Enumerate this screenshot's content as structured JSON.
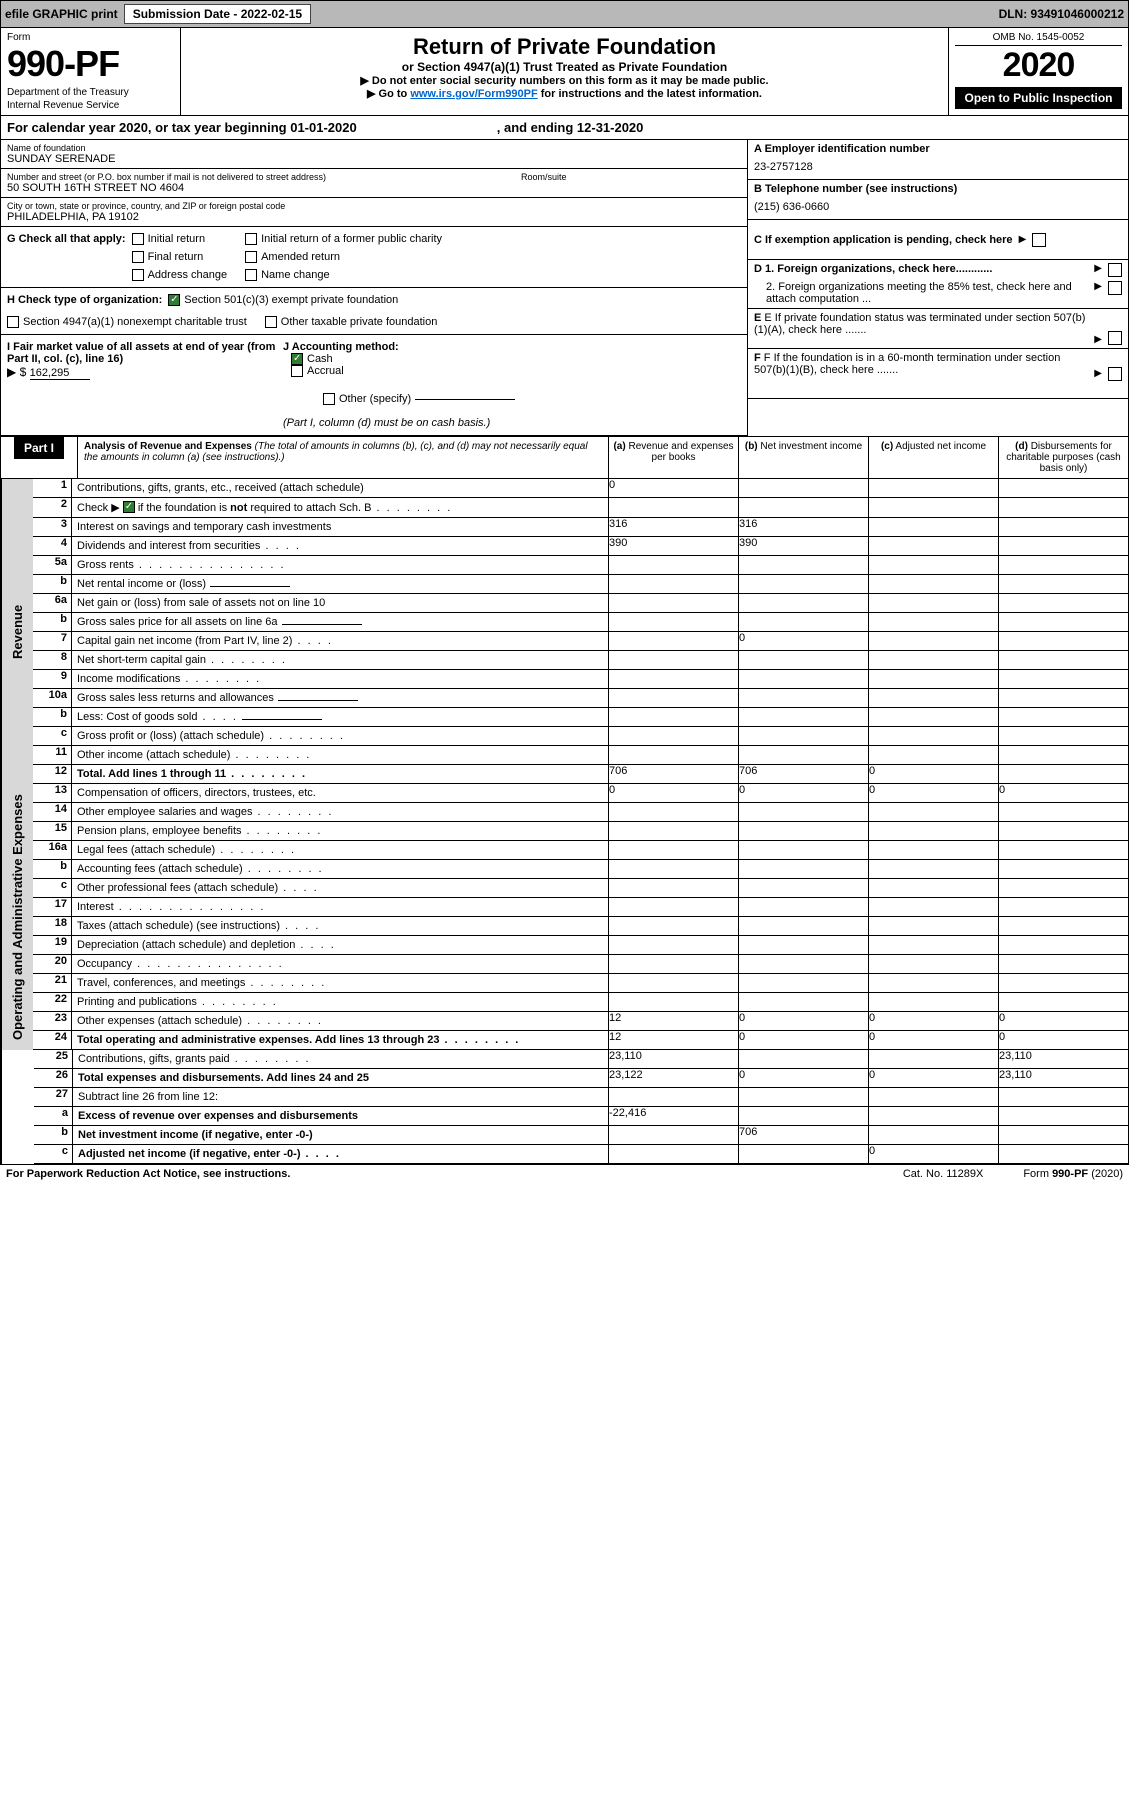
{
  "topbar": {
    "efile": "efile GRAPHIC print",
    "submission_lbl": "Submission Date - 2022-02-15",
    "dln": "DLN: 93491046000212"
  },
  "header": {
    "form_lbl": "Form",
    "form_no": "990-PF",
    "dept": "Department of the Treasury",
    "irs": "Internal Revenue Service",
    "title": "Return of Private Foundation",
    "subtitle": "or Section 4947(a)(1) Trust Treated as Private Foundation",
    "note1": "▶ Do not enter social security numbers on this form as it may be made public.",
    "note2_pre": "▶ Go to ",
    "note2_link": "www.irs.gov/Form990PF",
    "note2_post": " for instructions and the latest information.",
    "omb": "OMB No. 1545-0052",
    "year": "2020",
    "otp": "Open to Public Inspection"
  },
  "cal": {
    "text": "For calendar year 2020, or tax year beginning 01-01-2020",
    "ending": ", and ending 12-31-2020"
  },
  "id": {
    "name_lbl": "Name of foundation",
    "name": "SUNDAY SERENADE",
    "addr_lbl": "Number and street (or P.O. box number if mail is not delivered to street address)",
    "room_lbl": "Room/suite",
    "addr": "50 SOUTH 16TH STREET NO 4604",
    "city_lbl": "City or town, state or province, country, and ZIP or foreign postal code",
    "city": "PHILADELPHIA, PA  19102",
    "ein_lbl": "A Employer identification number",
    "ein": "23-2757128",
    "tel_lbl": "B Telephone number (see instructions)",
    "tel": "(215) 636-0660",
    "c_lbl": "C If exemption application is pending, check here",
    "d1_lbl": "D 1. Foreign organizations, check here............",
    "d2_lbl": "2. Foreign organizations meeting the 85% test, check here and attach computation ...",
    "e_lbl": "E  If private foundation status was terminated under section 507(b)(1)(A), check here .......",
    "f_lbl": "F  If the foundation is in a 60-month termination under section 507(b)(1)(B), check here .......",
    "g_lbl": "G Check all that apply:",
    "g_opts": [
      "Initial return",
      "Final return",
      "Address change",
      "Initial return of a former public charity",
      "Amended return",
      "Name change"
    ],
    "h_lbl": "H Check type of organization:",
    "h1": "Section 501(c)(3) exempt private foundation",
    "h2": "Section 4947(a)(1) nonexempt charitable trust",
    "h3": "Other taxable private foundation",
    "i_lbl": "I Fair market value of all assets at end of year (from Part II, col. (c), line 16)",
    "i_val": "162,295",
    "j_lbl": "J Accounting method:",
    "j_cash": "Cash",
    "j_accr": "Accrual",
    "j_other": "Other (specify)",
    "j_note": "(Part I, column (d) must be on cash basis.)"
  },
  "part1": {
    "label": "Part I",
    "title": "Analysis of Revenue and Expenses",
    "title_note": "(The total of amounts in columns (b), (c), and (d) may not necessarily equal the amounts in column (a) (see instructions).)",
    "col_a": "Revenue and expenses per books",
    "col_b": "Net investment income",
    "col_c": "Adjusted net income",
    "col_d": "Disbursements for charitable purposes (cash basis only)"
  },
  "sidebars": {
    "rev": "Revenue",
    "exp": "Operating and Administrative Expenses"
  },
  "rows": [
    {
      "n": "1",
      "t": "Contributions, gifts, grants, etc., received (attach schedule)",
      "a": "0",
      "bs": true,
      "cs": true,
      "ds": true
    },
    {
      "n": "2",
      "t": "Check ▶ ☑ if the foundation is not required to attach Sch. B",
      "dots": "s",
      "as": true,
      "bs": true,
      "cs": true,
      "ds": true,
      "bold_not": true
    },
    {
      "n": "3",
      "t": "Interest on savings and temporary cash investments",
      "a": "316",
      "b": "316"
    },
    {
      "n": "4",
      "t": "Dividends and interest from securities",
      "dots": "sh",
      "a": "390",
      "b": "390"
    },
    {
      "n": "5a",
      "t": "Gross rents",
      "dots": "y"
    },
    {
      "n": "b",
      "t": "Net rental income or (loss)",
      "uline": true,
      "as": true,
      "bs": true,
      "cs": true,
      "ds": true
    },
    {
      "n": "6a",
      "t": "Net gain or (loss) from sale of assets not on line 10",
      "cs": true,
      "ds": true
    },
    {
      "n": "b",
      "t": "Gross sales price for all assets on line 6a",
      "uline": true,
      "as": true,
      "bs": true,
      "cs": true,
      "ds": true
    },
    {
      "n": "7",
      "t": "Capital gain net income (from Part IV, line 2)",
      "dots": "sh",
      "as": true,
      "b": "0",
      "cs": true,
      "ds": true
    },
    {
      "n": "8",
      "t": "Net short-term capital gain",
      "dots": "s",
      "as": true,
      "bs": true,
      "ds": true
    },
    {
      "n": "9",
      "t": "Income modifications",
      "dots": "s",
      "as": true,
      "bs": true,
      "ds": true
    },
    {
      "n": "10a",
      "t": "Gross sales less returns and allowances",
      "uline": true,
      "as": true,
      "bs": true,
      "cs": true,
      "ds": true
    },
    {
      "n": "b",
      "t": "Less: Cost of goods sold",
      "dots": "sh",
      "uline": true,
      "as": true,
      "bs": true,
      "cs": true,
      "ds": true
    },
    {
      "n": "c",
      "t": "Gross profit or (loss) (attach schedule)",
      "dots": "s",
      "bs": true,
      "ds": true
    },
    {
      "n": "11",
      "t": "Other income (attach schedule)",
      "dots": "s"
    },
    {
      "n": "12",
      "t": "Total. Add lines 1 through 11",
      "dots": "s",
      "bold": true,
      "a": "706",
      "b": "706",
      "c": "0",
      "ds": true
    },
    {
      "n": "13",
      "t": "Compensation of officers, directors, trustees, etc.",
      "a": "0",
      "b": "0",
      "c": "0",
      "d": "0"
    },
    {
      "n": "14",
      "t": "Other employee salaries and wages",
      "dots": "s"
    },
    {
      "n": "15",
      "t": "Pension plans, employee benefits",
      "dots": "s"
    },
    {
      "n": "16a",
      "t": "Legal fees (attach schedule)",
      "dots": "s"
    },
    {
      "n": "b",
      "t": "Accounting fees (attach schedule)",
      "dots": "s"
    },
    {
      "n": "c",
      "t": "Other professional fees (attach schedule)",
      "dots": "sh"
    },
    {
      "n": "17",
      "t": "Interest",
      "dots": "y"
    },
    {
      "n": "18",
      "t": "Taxes (attach schedule) (see instructions)",
      "dots": "sh"
    },
    {
      "n": "19",
      "t": "Depreciation (attach schedule) and depletion",
      "dots": "sh",
      "ds": true
    },
    {
      "n": "20",
      "t": "Occupancy",
      "dots": "y"
    },
    {
      "n": "21",
      "t": "Travel, conferences, and meetings",
      "dots": "s"
    },
    {
      "n": "22",
      "t": "Printing and publications",
      "dots": "s"
    },
    {
      "n": "23",
      "t": "Other expenses (attach schedule)",
      "dots": "s",
      "a": "12",
      "b": "0",
      "c": "0",
      "d": "0"
    },
    {
      "n": "24",
      "t": "Total operating and administrative expenses. Add lines 13 through 23",
      "dots": "s",
      "bold": true,
      "a": "12",
      "b": "0",
      "c": "0",
      "d": "0"
    },
    {
      "n": "25",
      "t": "Contributions, gifts, grants paid",
      "dots": "s",
      "a": "23,110",
      "bs": true,
      "cs": true,
      "d": "23,110"
    },
    {
      "n": "26",
      "t": "Total expenses and disbursements. Add lines 24 and 25",
      "bold": true,
      "a": "23,122",
      "b": "0",
      "c": "0",
      "d": "23,110"
    },
    {
      "n": "27",
      "t": "Subtract line 26 from line 12:",
      "as": true,
      "bs": true,
      "cs": true,
      "ds": true
    },
    {
      "n": "a",
      "t": "Excess of revenue over expenses and disbursements",
      "bold": true,
      "a": "-22,416",
      "bs": true,
      "cs": true,
      "ds": true
    },
    {
      "n": "b",
      "t": "Net investment income (if negative, enter -0-)",
      "bold": true,
      "as": true,
      "b": "706",
      "cs": true,
      "ds": true
    },
    {
      "n": "c",
      "t": "Adjusted net income (if negative, enter -0-)",
      "dots": "sh",
      "bold": true,
      "as": true,
      "bs": true,
      "c": "0",
      "ds": true
    }
  ],
  "footer": {
    "pra": "For Paperwork Reduction Act Notice, see instructions.",
    "cat": "Cat. No. 11289X",
    "form": "Form 990-PF (2020)"
  }
}
